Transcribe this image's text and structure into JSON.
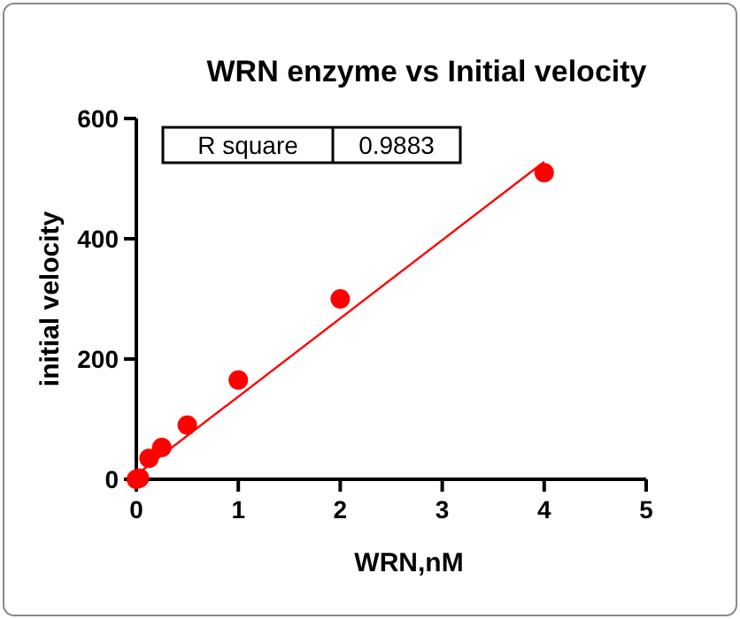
{
  "chart_data": {
    "type": "scatter",
    "title": "WRN enzyme vs Initial velocity",
    "xlabel": "WRN,nM",
    "ylabel": "initial velocity",
    "series": [
      {
        "color": "#ff0000",
        "marker": "circle",
        "x": [
          0,
          0.03,
          0.125,
          0.25,
          0.5,
          1,
          2,
          4
        ],
        "values": [
          0,
          2,
          35,
          53,
          90,
          165,
          300,
          510
        ]
      },
      {
        "type": "line",
        "color": "#ff0000",
        "marker": "none",
        "x": [
          0.02,
          4
        ],
        "values": [
          10,
          528
        ]
      }
    ],
    "xlim": [
      0,
      5
    ],
    "xticks": [
      0,
      1,
      2,
      3,
      4,
      5
    ],
    "ylim": [
      0,
      600
    ],
    "yticks": [
      0,
      200,
      400,
      600
    ],
    "annotations": [
      "R square",
      "0.9883"
    ]
  }
}
